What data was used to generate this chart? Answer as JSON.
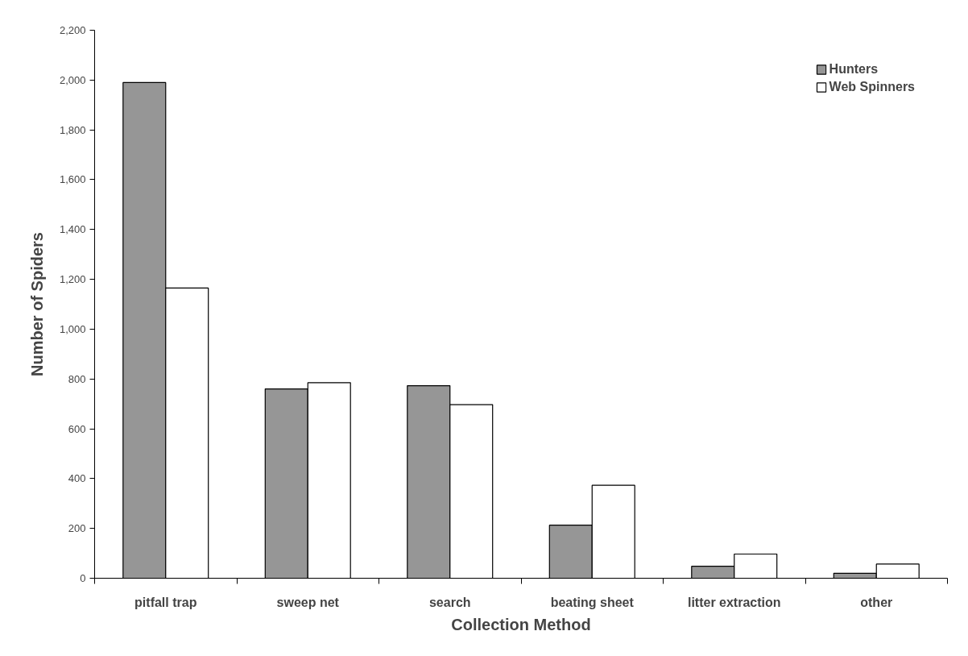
{
  "chart_data": {
    "type": "bar",
    "xlabel": "Collection Method",
    "ylabel": "Number of Spiders",
    "categories": [
      "pitfall trap",
      "sweep net",
      "search",
      "beating sheet",
      "litter extraction",
      "other"
    ],
    "series": [
      {
        "name": "Hunters",
        "color": "#969696",
        "values": [
          1990,
          760,
          773,
          213,
          48,
          20
        ]
      },
      {
        "name": "Web Spinners",
        "color": "#ffffff",
        "values": [
          1165,
          785,
          697,
          373,
          97,
          57
        ]
      }
    ],
    "ylim": [
      0,
      2200
    ],
    "yticks": [
      0,
      {
        "value": 200,
        "label": "200"
      },
      {
        "value": 400,
        "label": "400"
      },
      {
        "value": 600,
        "label": "600"
      },
      {
        "value": 800,
        "label": "800"
      },
      {
        "value": 1000,
        "label": "1,000"
      },
      {
        "value": 1200,
        "label": "1,200"
      },
      {
        "value": 1400,
        "label": "1,400"
      },
      {
        "value": 1600,
        "label": "1,600"
      },
      {
        "value": 1800,
        "label": "1,800"
      },
      {
        "value": 2000,
        "label": "2,000"
      },
      {
        "value": 2200,
        "label": "2,200"
      }
    ],
    "grid": false,
    "legend": "top right"
  }
}
